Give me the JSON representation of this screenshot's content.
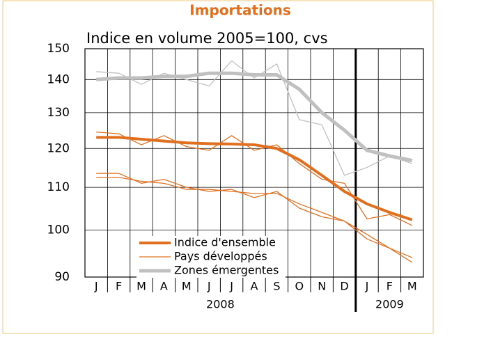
{
  "chart_data": {
    "type": "line",
    "title": "Importations",
    "subtitle": "Indice en volume 2005=100, cvs",
    "categories": [
      "J",
      "F",
      "M",
      "A",
      "M",
      "J",
      "J",
      "A",
      "S",
      "O",
      "N",
      "D",
      "J",
      "F",
      "M"
    ],
    "groups": [
      {
        "label": "2008",
        "categories": 12
      },
      {
        "label": "2009",
        "categories": 3
      }
    ],
    "series": [
      {
        "color": "#e07020",
        "width": 1.3,
        "values": [
          124.5,
          124,
          121,
          123.5,
          120.5,
          119.5,
          123.5,
          119.5,
          121,
          116,
          112,
          111,
          102.5,
          103.5,
          101
        ]
      },
      {
        "color": "#e07020",
        "width": 1.3,
        "values": [
          113.5,
          113.5,
          111,
          112,
          110,
          109,
          109.5,
          107.5,
          109,
          105,
          103,
          102,
          98,
          96,
          94
        ]
      },
      {
        "name": "Pays développés",
        "color": "#e07020",
        "width": 1.3,
        "values": [
          112.5,
          112.5,
          111.5,
          111,
          109.5,
          109.5,
          109,
          108.5,
          108.5,
          106,
          104,
          102,
          99,
          96,
          93
        ]
      },
      {
        "color": "#c0c0c0",
        "width": 1.3,
        "values": [
          142.5,
          142,
          138.5,
          142,
          140,
          138,
          146,
          140.5,
          145,
          128,
          126.5,
          113,
          115,
          118,
          116
        ]
      },
      {
        "name": "Zones émergentes",
        "color": "#c0c0c0",
        "width": 5,
        "values": [
          140,
          140.5,
          140.5,
          141,
          141,
          142,
          142,
          141.5,
          141.5,
          137,
          130,
          125,
          119.5,
          118,
          116.8
        ]
      },
      {
        "name": "Indice d'ensemble",
        "color": "#e07020",
        "width": 4,
        "values": [
          123,
          123,
          122.5,
          122,
          121.5,
          121.3,
          121.2,
          121,
          120,
          117,
          113,
          109,
          106,
          104,
          102.3
        ]
      }
    ],
    "legend_order": [
      5,
      2,
      4
    ],
    "ylim": [
      90,
      150
    ],
    "yticks": [
      90,
      100,
      110,
      120,
      130,
      140,
      150
    ],
    "log": true,
    "grid": true
  }
}
